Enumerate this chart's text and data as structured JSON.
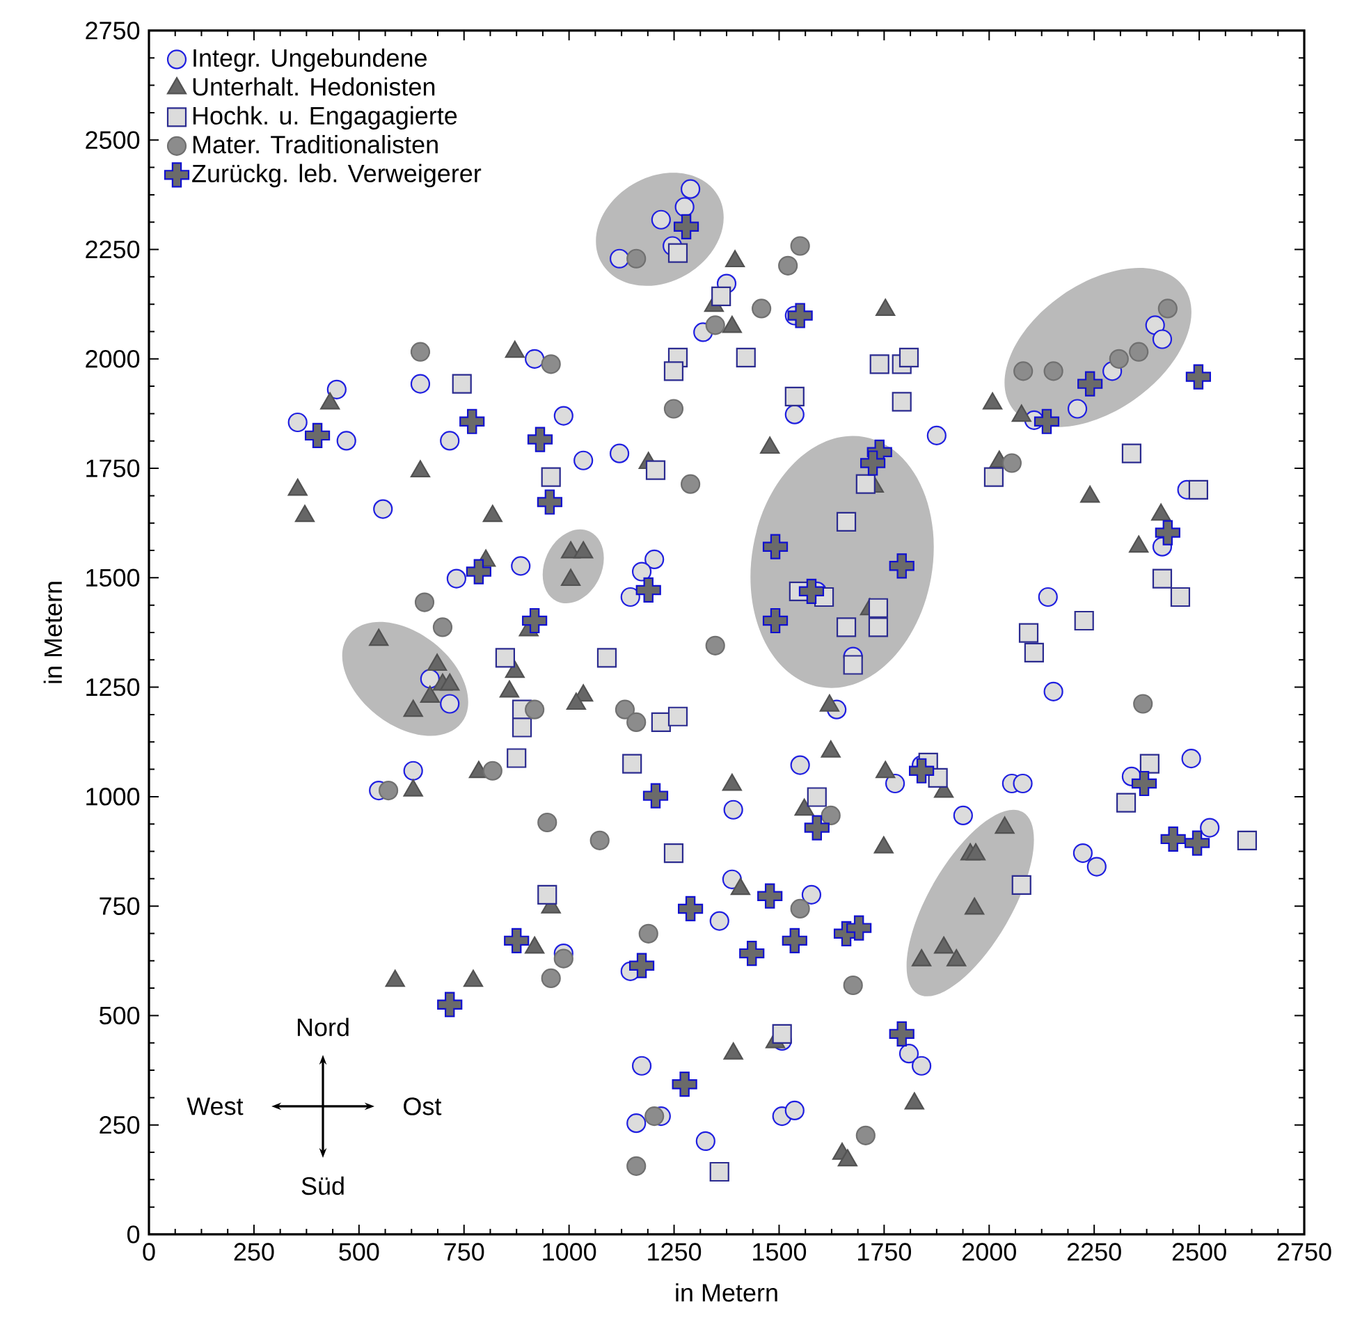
{
  "chart_data": {
    "type": "scatter",
    "xlabel": "in Metern",
    "ylabel": "in Metern",
    "xlim": [
      0,
      2750
    ],
    "ylim": [
      0,
      2750
    ],
    "xticks": [
      0,
      250,
      500,
      750,
      1000,
      1250,
      1500,
      1750,
      2000,
      2250,
      2500,
      2750
    ],
    "yticks": [
      0,
      250,
      500,
      750,
      1000,
      1250,
      1500,
      1750,
      2000,
      2250,
      2500,
      2750
    ],
    "legend": "top left",
    "annotations": [
      "Nord",
      "West",
      "Ost",
      "Süd"
    ],
    "series": [
      {
        "name": "Integr. Ungebundene",
        "color": "#1f1fe0",
        "marker": "circle",
        "x": [
          354,
          447,
          470,
          557,
          646,
          716,
          918,
          987,
          1034,
          1120,
          732,
          885,
          1203,
          1173,
          1146,
          669,
          716,
          629,
          547,
          1120,
          1219,
          1246,
          1275,
          1289,
          1319,
          1375,
          1537,
          1537,
          1875,
          2107,
          2210,
          2293,
          2395,
          2412,
          2471,
          2412,
          2140,
          2153,
          1637,
          1676,
          1590,
          1550,
          1776,
          1391,
          1938,
          2054,
          2080,
          2339,
          2481,
          2525,
          2223,
          2256,
          1388,
          1577,
          1358,
          987,
          1146,
          1809,
          1839,
          1507,
          1537,
          1325,
          1507,
          1173,
          1160,
          1219,
          1839
        ],
        "values": [
          1855,
          1930,
          1813,
          1657,
          1943,
          1813,
          2000,
          1870,
          1768,
          1784,
          1498,
          1527,
          1542,
          1514,
          1456,
          1269,
          1212,
          1059,
          1014,
          2229,
          2318,
          2258,
          2347,
          2388,
          2061,
          2172,
          2099,
          1873,
          1825,
          1860,
          1886,
          1972,
          2077,
          2045,
          1701,
          1571,
          1456,
          1240,
          1199,
          1320,
          1469,
          1072,
          1030,
          970,
          957,
          1030,
          1030,
          1046,
          1087,
          929,
          871,
          840,
          811,
          776,
          716,
          642,
          601,
          413,
          385,
          270,
          283,
          213,
          442,
          385,
          254,
          270,
          1072
        ]
      },
      {
        "name": "Unterhalt. Hedonisten",
        "color": "#666666",
        "marker": "triangle",
        "x": [
          354,
          371,
          646,
          818,
          802,
          1189,
          1004,
          1034,
          1004,
          547,
          686,
          699,
          716,
          669,
          629,
          871,
          858,
          904,
          1034,
          1017,
          785,
          629,
          1388,
          431,
          871,
          1395,
          1345,
          1388,
          1753,
          2008,
          2077,
          1478,
          2240,
          2409,
          2356,
          2024,
          1726,
          1716,
          1620,
          1623,
          1753,
          1892,
          1560,
          1749,
          2037,
          1955,
          1968,
          1965,
          1839,
          1892,
          1922,
          1391,
          1491,
          1822,
          1650,
          1663,
          1408,
          586,
          772,
          918,
          957
        ],
        "values": [
          1701,
          1641,
          1743,
          1641,
          1539,
          1762,
          1558,
          1558,
          1495,
          1358,
          1301,
          1256,
          1256,
          1228,
          1196,
          1285,
          1240,
          1380,
          1231,
          1212,
          1056,
          1014,
          1027,
          1898,
          2016,
          2223,
          2121,
          2073,
          2112,
          1898,
          1870,
          1797,
          1685,
          1644,
          1571,
          1765,
          1708,
          1428,
          1208,
          1103,
          1056,
          1011,
          970,
          884,
          929,
          868,
          868,
          744,
          626,
          655,
          626,
          413,
          439,
          299,
          184,
          169,
          789,
          579,
          579,
          655,
          747
        ]
      },
      {
        "name": "Hochk. u. Engagagierte",
        "color": "#2b2b90",
        "marker": "square",
        "x": [
          1259,
          1362,
          745,
          1259,
          1249,
          1421,
          1537,
          1739,
          1792,
          1809,
          1792,
          957,
          null,
          1206,
          null,
          848,
          1090,
          888,
          888,
          1219,
          1259,
          875,
          1150,
          2339,
          2498,
          2011,
          2412,
          2455,
          1706,
          1660,
          1547,
          1607,
          1736,
          1660,
          1736,
          1676,
          2226,
          2094,
          2107,
          1590,
          1855,
          1878,
          2382,
          2326,
          2614,
          2077,
          null,
          1507,
          1358,
          1249,
          948
        ],
        "values": [
          2242,
          2143,
          1943,
          2003,
          1972,
          2003,
          1914,
          1988,
          1988,
          2003,
          1902,
          1730,
          null,
          1746,
          null,
          1317,
          1317,
          1199,
          1158,
          1170,
          1183,
          1088,
          1075,
          1784,
          1701,
          1730,
          1498,
          1456,
          1714,
          1628,
          1469,
          1456,
          1431,
          1387,
          1387,
          1301,
          1402,
          1374,
          1329,
          999,
          1078,
          1043,
          1075,
          986,
          900,
          798,
          null,
          458,
          143,
          871,
          776
        ]
      },
      {
        "name": "Mater. Traditionalisten",
        "color": "#8c8c8c",
        "marker": "circle",
        "x": [
          1160,
          646,
          957,
          1249,
          1348,
          1550,
          1521,
          1458,
          null,
          2425,
          2356,
          2309,
          2153,
          2081,
          1289,
          656,
          699,
          1348,
          918,
          1133,
          1160,
          818,
          570,
          948,
          1073,
          2054,
          2366,
          null,
          1623,
          1550,
          1676,
          1706,
          1189,
          987,
          957,
          1203,
          1160
        ],
        "values": [
          2229,
          2016,
          1988,
          1886,
          2077,
          2258,
          2213,
          2115,
          null,
          2115,
          2016,
          2000,
          1972,
          1972,
          1714,
          1444,
          1387,
          1345,
          1199,
          1199,
          1170,
          1059,
          1014,
          941,
          900,
          1762,
          1212,
          null,
          957,
          744,
          569,
          226,
          687,
          630,
          585,
          270,
          156
        ]
      },
      {
        "name": "Zurückg. leb. Verweigerer",
        "color": "#1010d0",
        "marker": "cross",
        "x": [
          1279,
          401,
          769,
          931,
          1550,
          2240,
          2137,
          2498,
          785,
          954,
          918,
          1189,
          1206,
          1739,
          1723,
          1491,
          1792,
          1577,
          1491,
          2425,
          1590,
          1839,
          2369,
          2438,
          2495,
          1478,
          1537,
          1435,
          1660,
          1690,
          1792,
          875,
          716,
          1173,
          1289,
          1275
        ],
        "values": [
          2302,
          1825,
          1857,
          1816,
          2099,
          1943,
          1857,
          1959,
          1514,
          1673,
          1402,
          1472,
          1002,
          1787,
          1762,
          1571,
          1527,
          1469,
          1402,
          1603,
          929,
          1059,
          1030,
          903,
          894,
          773,
          671,
          642,
          687,
          700,
          458,
          671,
          525,
          614,
          744,
          343
        ]
      }
    ]
  }
}
